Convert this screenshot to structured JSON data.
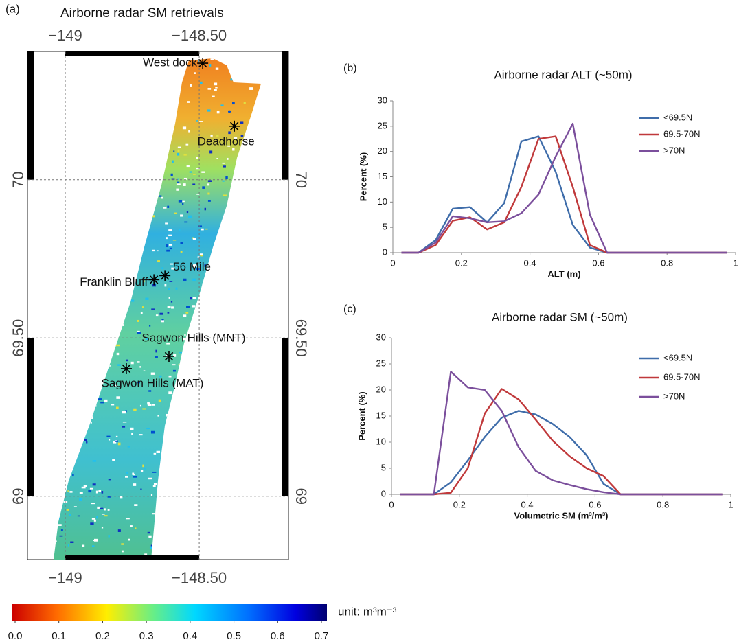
{
  "chart_data": [
    {
      "type": "map",
      "panel": "(a)",
      "title": "Airborne radar SM retrievals",
      "xlim": [
        -149.141,
        -148.167
      ],
      "xticks": [
        {
          "value": -149,
          "label": "−149"
        },
        {
          "value": -148.5,
          "label": "−148.50"
        }
      ],
      "ylim": [
        68.8,
        70.405
      ],
      "yticks": [
        {
          "value": 69,
          "label": "69"
        },
        {
          "value": 69.5,
          "label": "69.50"
        },
        {
          "value": 70,
          "label": "70"
        }
      ],
      "grid": true,
      "sites": [
        {
          "name": "West dock",
          "x": -148.487,
          "y": 70.368
        },
        {
          "name": "Deadhorse",
          "x": -148.369,
          "y": 70.169
        },
        {
          "name": "56 Mile",
          "x": -148.628,
          "y": 69.697
        },
        {
          "name": "Franklin Bluff",
          "x": -148.669,
          "y": 69.684
        },
        {
          "name": "Sagwon Hills (MNT)",
          "x": -148.613,
          "y": 69.442
        },
        {
          "name": "Sagwon Hills (MAT)",
          "x": -148.772,
          "y": 69.403
        }
      ],
      "colorbar": {
        "lim": [
          0,
          0.7
        ],
        "ticks": [
          {
            "value": 0,
            "label": "0.0"
          },
          0.1,
          0.2,
          0.3,
          0.4,
          0.5,
          0.6,
          0.7
        ],
        "unit": "unit: m³m⁻³"
      }
    },
    {
      "type": "line",
      "panel": "(b)",
      "title": "Airborne radar ALT (~50m)",
      "xlabel": "ALT (m)",
      "ylabel": "Percent (%)",
      "x": [
        0.025,
        0.075,
        0.125,
        0.175,
        0.225,
        0.275,
        0.325,
        0.375,
        0.425,
        0.475,
        0.525,
        0.575,
        0.625,
        0.675,
        0.725,
        0.775,
        0.825,
        0.875,
        0.925,
        0.975
      ],
      "xlim": [
        0,
        1
      ],
      "xticks": [
        0,
        0.2,
        0.4,
        0.6,
        0.8,
        1
      ],
      "ylim": [
        0,
        30
      ],
      "yticks": [
        0,
        5,
        10,
        15,
        20,
        25,
        30
      ],
      "grid": false,
      "legend": "upper right",
      "series": [
        {
          "name": "<69.5N",
          "color": "#3f6daa",
          "values": [
            0,
            0,
            2.5,
            8.7,
            9.0,
            6.0,
            9.8,
            22,
            23,
            16,
            5.5,
            1,
            0,
            0,
            0,
            0,
            0,
            0,
            0,
            0
          ]
        },
        {
          "name": "69.5-70N",
          "color": "#c0393b",
          "values": [
            0,
            0,
            1.5,
            6.3,
            7,
            4.6,
            6,
            13,
            22.5,
            23,
            13,
            1.5,
            0,
            0,
            0,
            0,
            0,
            0,
            0,
            0
          ]
        },
        {
          "name": ">70N",
          "color": "#7b4f9c",
          "values": [
            0,
            0,
            2,
            7.2,
            6.8,
            6,
            6.2,
            7.8,
            11.5,
            19,
            25.5,
            7.5,
            0,
            0,
            0,
            0,
            0,
            0,
            0,
            0
          ]
        }
      ]
    },
    {
      "type": "line",
      "panel": "(c)",
      "title": "Airborne radar SM (~50m)",
      "xlabel": "Volumetric SM (m³/m³)",
      "ylabel": "Percent (%)",
      "x": [
        0.025,
        0.075,
        0.125,
        0.175,
        0.225,
        0.275,
        0.325,
        0.375,
        0.425,
        0.475,
        0.525,
        0.575,
        0.625,
        0.675,
        0.725,
        0.775,
        0.825,
        0.875,
        0.925,
        0.975
      ],
      "xlim": [
        0,
        1
      ],
      "xticks": [
        0,
        0.2,
        0.4,
        0.6,
        0.8,
        1
      ],
      "ylim": [
        0,
        30
      ],
      "yticks": [
        0,
        5,
        10,
        15,
        20,
        25,
        30
      ],
      "grid": false,
      "legend": "upper right",
      "series": [
        {
          "name": "<69.5N",
          "color": "#3f6daa",
          "values": [
            0,
            0,
            0,
            2.3,
            6.5,
            11,
            14.7,
            16,
            15.3,
            13.5,
            11,
            7.5,
            2,
            0,
            0,
            0,
            0,
            0,
            0,
            0
          ]
        },
        {
          "name": "69.5-70N",
          "color": "#c0393b",
          "values": [
            0,
            0,
            0,
            0.3,
            5,
            15.5,
            20.2,
            18.2,
            14.3,
            10.3,
            7.3,
            5,
            3.5,
            0,
            0,
            0,
            0,
            0,
            0,
            0
          ]
        },
        {
          "name": ">70N",
          "color": "#7b4f9c",
          "values": [
            0,
            0,
            0,
            23.5,
            20.5,
            20,
            16,
            9,
            4.5,
            2.7,
            1.8,
            1,
            0.4,
            0,
            0,
            0,
            0,
            0,
            0,
            0
          ]
        }
      ]
    }
  ]
}
